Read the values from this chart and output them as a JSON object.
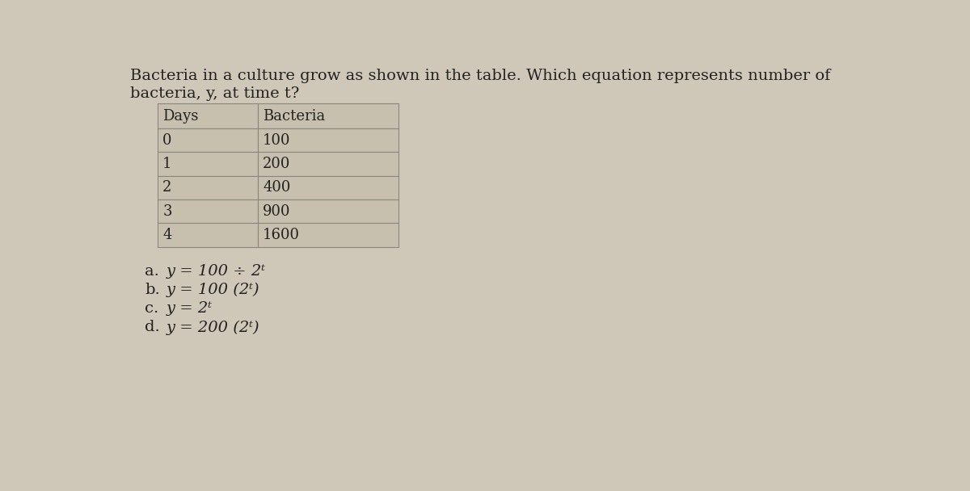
{
  "title_line1": "Bacteria in a culture grow as shown in the table. Which equation represents number of",
  "title_line2": "bacteria, y, at time t?",
  "col_headers": [
    "Days",
    "Bacteria"
  ],
  "table_data": [
    [
      "0",
      "100"
    ],
    [
      "1",
      "200"
    ],
    [
      "2",
      "400"
    ],
    [
      "3",
      "900"
    ],
    [
      "4",
      "1600"
    ]
  ],
  "options": [
    {
      "label": "a.",
      "eq_parts": [
        {
          "text": "y",
          "style": "italic"
        },
        {
          "text": " = 100 ÷ 2",
          "style": "italic"
        },
        {
          "text": "t",
          "style": "italic",
          "super": true
        }
      ]
    },
    {
      "label": "b.",
      "eq_parts": [
        {
          "text": "y",
          "style": "italic"
        },
        {
          "text": " = 100 (2",
          "style": "italic"
        },
        {
          "text": "t",
          "style": "italic",
          "super": true
        },
        {
          "text": ")",
          "style": "italic"
        }
      ]
    },
    {
      "label": "c.",
      "eq_parts": [
        {
          "text": "y",
          "style": "italic"
        },
        {
          "text": " = 2",
          "style": "italic"
        },
        {
          "text": "t",
          "style": "italic",
          "super": true
        }
      ]
    },
    {
      "label": "d.",
      "eq_parts": [
        {
          "text": "y",
          "style": "italic"
        },
        {
          "text": " = 200 (2",
          "style": "italic"
        },
        {
          "text": "t",
          "style": "italic",
          "super": true
        },
        {
          "text": ")",
          "style": "italic"
        }
      ]
    }
  ],
  "option_labels": [
    "a.",
    "b.",
    "c.",
    "d."
  ],
  "option_texts": [
    "y = 100 ÷ 2ᵗ",
    "y = 100 (2ᵗ)",
    "y = 2ᵗ",
    "y = 200 (2ᵗ)"
  ],
  "bg_color": "#cfc8b8",
  "cell_color": "#c8c0ae",
  "border_color": "#888880",
  "text_color": "#222222",
  "title_fontsize": 14,
  "table_fontsize": 13,
  "option_fontsize": 14
}
